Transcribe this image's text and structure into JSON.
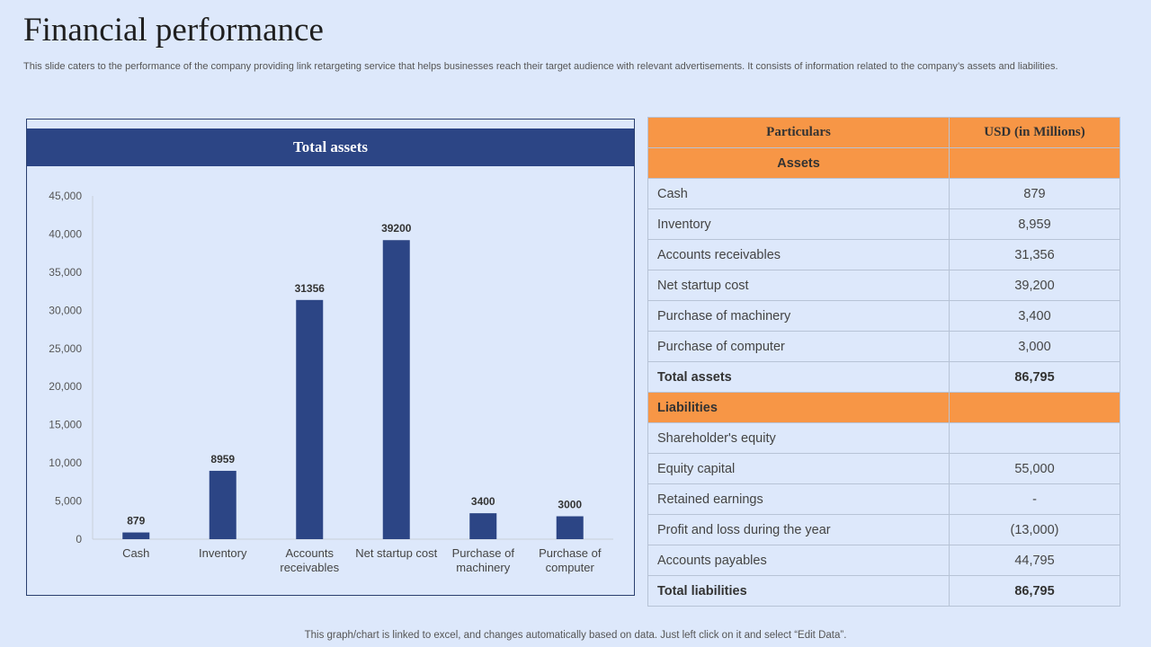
{
  "page": {
    "title": "Financial performance",
    "subtitle": "This slide caters to the performance of the company providing link retargeting service that helps businesses reach their target audience with relevant advertisements. It consists of information related to the company’s assets and liabilities.",
    "footer": "This graph/chart is linked to excel,  and changes automatically based on data. Just left click on it and select “Edit Data”."
  },
  "colors": {
    "bar": "#2c4585",
    "header": "#f79646",
    "background": "#dde8fb"
  },
  "chart_data": {
    "type": "bar",
    "title": "Total assets",
    "categories": [
      "Cash",
      "Inventory",
      "Accounts receivables",
      "Net startup cost",
      "Purchase of machinery",
      "Purchase of computer"
    ],
    "category_lines": [
      [
        "Cash"
      ],
      [
        "Inventory"
      ],
      [
        "Accounts",
        "receivables"
      ],
      [
        "Net startup cost"
      ],
      [
        "Purchase of",
        "machinery"
      ],
      [
        "Purchase of",
        "computer"
      ]
    ],
    "values": [
      879,
      8959,
      31356,
      39200,
      3400,
      3000
    ],
    "data_labels": [
      "879",
      "8959",
      "31356",
      "39200",
      "3400",
      "3000"
    ],
    "ylim": [
      0,
      45000
    ],
    "yticks": [
      0,
      5000,
      10000,
      15000,
      20000,
      25000,
      30000,
      35000,
      40000,
      45000
    ],
    "ytick_labels": [
      "0",
      "5,000",
      "10,000",
      "15,000",
      "20,000",
      "25,000",
      "30,000",
      "35,000",
      "40,000",
      "45,000"
    ],
    "grid": false,
    "legend": "none"
  },
  "table": {
    "headers": [
      "Particulars",
      "USD (in Millions)"
    ],
    "assets_label": "Assets",
    "assets_rows": [
      {
        "label": "Cash",
        "value": "879"
      },
      {
        "label": "Inventory",
        "value": "8,959"
      },
      {
        "label": "Accounts receivables",
        "value": "31,356"
      },
      {
        "label": "Net startup cost",
        "value": "39,200"
      },
      {
        "label": "Purchase of machinery",
        "value": "3,400"
      },
      {
        "label": "Purchase of computer",
        "value": "3,000"
      }
    ],
    "assets_total": {
      "label": "Total assets",
      "value": "86,795"
    },
    "liabilities_label": "Liabilities",
    "liabilities_rows": [
      {
        "label": "Shareholder's equity",
        "value": ""
      },
      {
        "label": "Equity capital",
        "value": "55,000"
      },
      {
        "label": "Retained earnings",
        "value": "-"
      },
      {
        "label": "Profit and loss during the year",
        "value": "(13,000)"
      },
      {
        "label": "Accounts payables",
        "value": "44,795"
      }
    ],
    "liabilities_total": {
      "label": "Total liabilities",
      "value": "86,795"
    }
  }
}
